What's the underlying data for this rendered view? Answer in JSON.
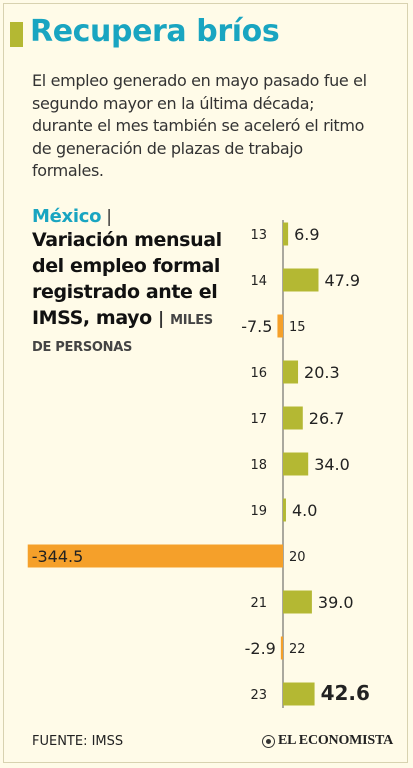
{
  "header": {
    "title": "Recupera bríos",
    "subtitle": "El empleo generado en mayo pasado fue el segundo mayor en la última década; durante el mes también se aceleró el ritmo de generación de plazas de trabajo formales."
  },
  "heading": {
    "country": "México",
    "separator": "|",
    "metric": "Variación mensual del empleo formal registrado ante el IMSS, mayo",
    "units": "MILES DE PERSONAS"
  },
  "footer": {
    "source": "FUENTE: IMSS",
    "brand": "EL ECONOMISTA"
  },
  "colors": {
    "accent": "#19a5c1",
    "positive": "#b4b833",
    "negative": "#f5a02a",
    "background": "#fffbe8"
  },
  "chart_data": {
    "type": "bar",
    "orientation": "horizontal",
    "categories": [
      "13",
      "14",
      "15",
      "16",
      "17",
      "18",
      "19",
      "20",
      "21",
      "22",
      "23"
    ],
    "values": [
      6.9,
      47.9,
      -7.5,
      20.3,
      26.7,
      34.0,
      4.0,
      -344.5,
      39.0,
      -2.9,
      42.6
    ],
    "value_labels": [
      "6.9",
      "47.9",
      "-7.5",
      "20.3",
      "26.7",
      "34.0",
      "4.0",
      "-344.5",
      "39.0",
      "-2.9",
      "42.6"
    ],
    "highlight_category": "23",
    "title": "Variación mensual del empleo formal registrado ante el IMSS, mayo",
    "units": "MILES DE PERSONAS",
    "grid": false,
    "legend": "none"
  }
}
